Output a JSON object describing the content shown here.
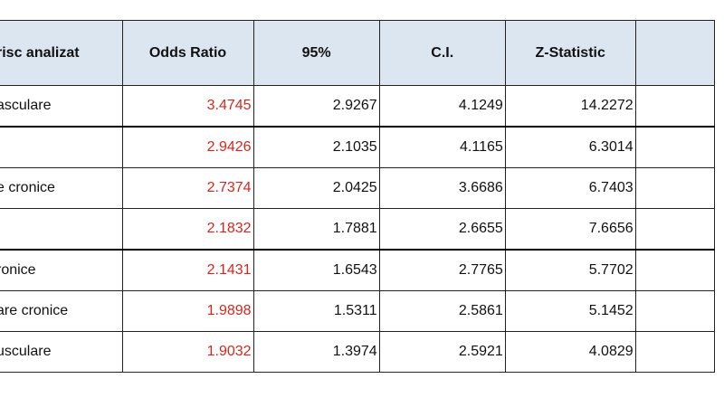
{
  "table": {
    "headers": [
      "risc analizat",
      "Odds Ratio",
      "95%",
      "C.I.",
      "Z-Statistic",
      ""
    ],
    "rows": [
      {
        "name": "asculare",
        "or": "3.4745",
        "ci_low": "2.9267",
        "ci_high": "4.1249",
        "z": "14.2272"
      },
      {
        "name": "",
        "or": "2.9426",
        "ci_low": "2.1035",
        "ci_high": "4.1165",
        "z": "6.3014"
      },
      {
        "name": "e cronice",
        "or": "2.7374",
        "ci_low": "2.0425",
        "ci_high": "3.6686",
        "z": "6.7403"
      },
      {
        "name": "",
        "or": "2.1832",
        "ci_low": "1.7881",
        "ci_high": "2.6655",
        "z": "7.6656"
      },
      {
        "name": "ronice",
        "or": "2.1431",
        "ci_low": "1.6543",
        "ci_high": "2.7765",
        "z": "5.7702"
      },
      {
        "name": "are cronice",
        "or": "1.9898",
        "ci_low": "1.5311",
        "ci_high": "2.5861",
        "z": "5.1452"
      },
      {
        "name": "usculare",
        "or": "1.9032",
        "ci_low": "1.3974",
        "ci_high": "2.5921",
        "z": "4.0829"
      }
    ]
  },
  "colors": {
    "header_bg": "#dce6f1",
    "odds_ratio_text": "#d9261c",
    "border": "#222222"
  }
}
